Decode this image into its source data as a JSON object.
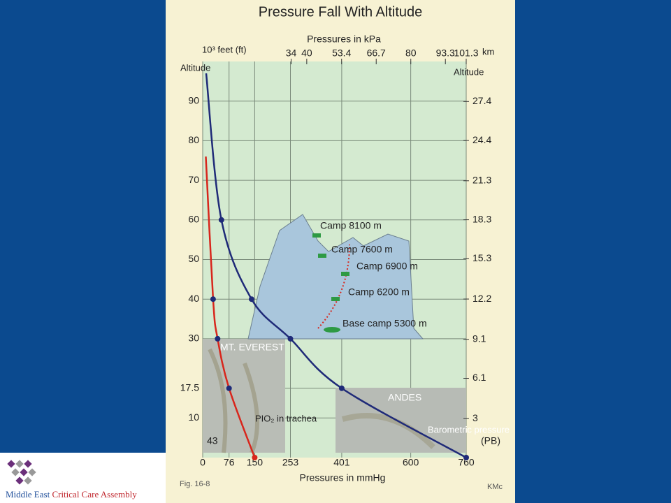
{
  "chart_data": {
    "type": "line",
    "title": "Pressure Fall With Altitude",
    "x_label": "Pressures in mmHg",
    "x2_label": "Pressures in kPa",
    "y_label": "10³ feet (ft)",
    "y_title": "Altitude",
    "y2_label": "km",
    "y2_title": "Altitude",
    "xlim": [
      0,
      760
    ],
    "xticks": [
      0,
      76,
      150,
      253,
      401,
      600,
      760
    ],
    "x2lim": [
      0,
      101.3
    ],
    "x2ticks": [
      34,
      40,
      53.4,
      66.7,
      80,
      93.3,
      101.3
    ],
    "ylim": [
      0,
      100
    ],
    "yticks": [
      10,
      17.5,
      30,
      40,
      50,
      60,
      70,
      80,
      90
    ],
    "y2lim": [
      0,
      30.48
    ],
    "y2ticks": [
      3,
      6.1,
      9.1,
      12.2,
      15.3,
      18.3,
      21.3,
      24.4,
      27.4
    ],
    "grid": true,
    "series": [
      {
        "name": "Barometric pressure",
        "color": "#1f2a78",
        "x": [
          760,
          401,
          253,
          141,
          54,
          10
        ],
        "values": [
          0,
          17.5,
          30,
          40,
          60,
          97
        ]
      },
      {
        "name": "PIO₂ in trachea",
        "color": "#d8261c",
        "x": [
          150,
          76,
          43,
          30,
          9
        ],
        "values": [
          0,
          17.5,
          30,
          40,
          76
        ]
      }
    ],
    "annotations": [
      "Camp 8100 m",
      "Camp 7600 m",
      "Camp 6900 m",
      "Camp 6200 m",
      "Base camp 5300 m",
      "MT. EVEREST",
      "ANDES",
      "43",
      "(PB)"
    ],
    "figure_label": "Fig. 16-8",
    "credit": "KMc"
  },
  "footer": {
    "org_part1": "Middle East",
    "org_part2": "Critical Care Assembly"
  }
}
